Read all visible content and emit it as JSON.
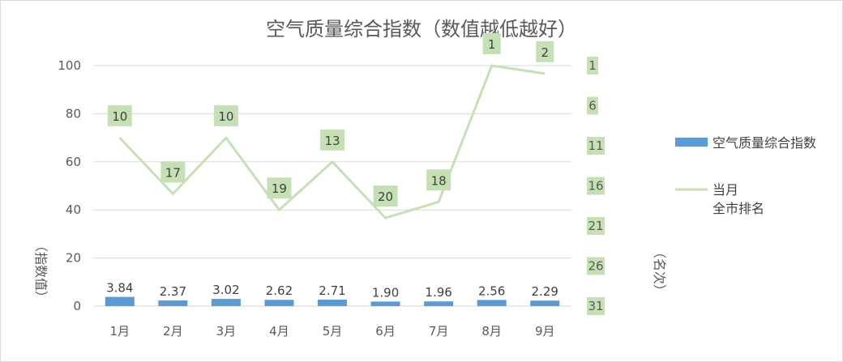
{
  "chart_data": {
    "type": "bar",
    "title": "空气质量综合指数（数值越低越好）",
    "categories": [
      "1月",
      "2月",
      "3月",
      "4月",
      "5月",
      "6月",
      "7月",
      "8月",
      "9月"
    ],
    "ylabel": "（指数值）",
    "y2label": "（名次）",
    "ylim": [
      0,
      100
    ],
    "yticks": [
      "0",
      "20",
      "40",
      "60",
      "80",
      "100"
    ],
    "y2lim": [
      31,
      1
    ],
    "y2ticks": [
      "1",
      "6",
      "11",
      "16",
      "21",
      "26",
      "31"
    ],
    "grid": true,
    "legend_position": "right",
    "series": [
      {
        "name": "空气质量综合指数",
        "type": "bar",
        "color": "#5b9bd5",
        "values": [
          3.84,
          2.37,
          3.02,
          2.62,
          2.71,
          1.9,
          1.96,
          2.56,
          2.29
        ],
        "labels": [
          "3.84",
          "2.37",
          "3.02",
          "2.62",
          "2.71",
          "1.90",
          "1.96",
          "2.56",
          "2.29"
        ]
      },
      {
        "name_lines": [
          "当月",
          "全市排名"
        ],
        "type": "line",
        "axis": "secondary",
        "color": "#c5e0b4",
        "values": [
          10,
          17,
          10,
          19,
          13,
          20,
          18,
          1,
          2
        ],
        "labels": [
          "10",
          "17",
          "10",
          "19",
          "13",
          "20",
          "18",
          "1",
          "2"
        ]
      }
    ]
  }
}
